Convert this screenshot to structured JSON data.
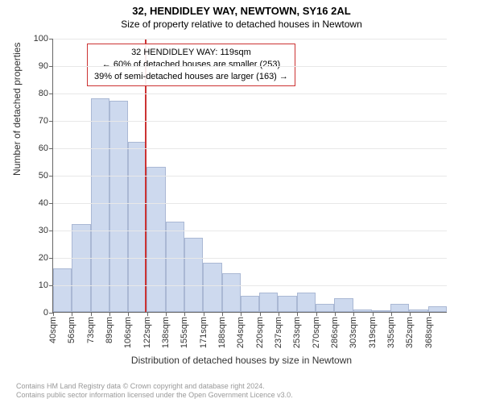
{
  "title_main": "32, HENDIDLEY WAY, NEWTOWN, SY16 2AL",
  "title_sub": "Size of property relative to detached houses in Newtown",
  "ylabel": "Number of detached properties",
  "xlabel": "Distribution of detached houses by size in Newtown",
  "chart": {
    "type": "histogram",
    "ylim": [
      0,
      100
    ],
    "ytick_step": 10,
    "background_color": "#ffffff",
    "grid_color": "#e8e8e8",
    "bar_fill": "#cdd9ee",
    "bar_border": "#aab8d4",
    "ref_line_color": "#cc3333",
    "ref_value_sqm": 119,
    "xmin": 40,
    "xmax": 380,
    "xticks": [
      "40sqm",
      "56sqm",
      "73sqm",
      "89sqm",
      "106sqm",
      "122sqm",
      "138sqm",
      "155sqm",
      "171sqm",
      "188sqm",
      "204sqm",
      "220sqm",
      "237sqm",
      "253sqm",
      "270sqm",
      "286sqm",
      "303sqm",
      "319sqm",
      "335sqm",
      "352sqm",
      "368sqm"
    ],
    "values": [
      16,
      32,
      78,
      77,
      62,
      53,
      33,
      27,
      18,
      14,
      6,
      7,
      6,
      7,
      3,
      5,
      1,
      0,
      3,
      1,
      2
    ],
    "label_fontsize": 12,
    "tick_fontsize": 11
  },
  "annotation": {
    "line1": "32 HENDIDLEY WAY: 119sqm",
    "line2": "← 60% of detached houses are smaller (253)",
    "line3": "39% of semi-detached houses are larger (163) →",
    "border_color": "#cc3333"
  },
  "attribution": {
    "line1": "Contains HM Land Registry data © Crown copyright and database right 2024.",
    "line2": "Contains public sector information licensed under the Open Government Licence v3.0."
  }
}
